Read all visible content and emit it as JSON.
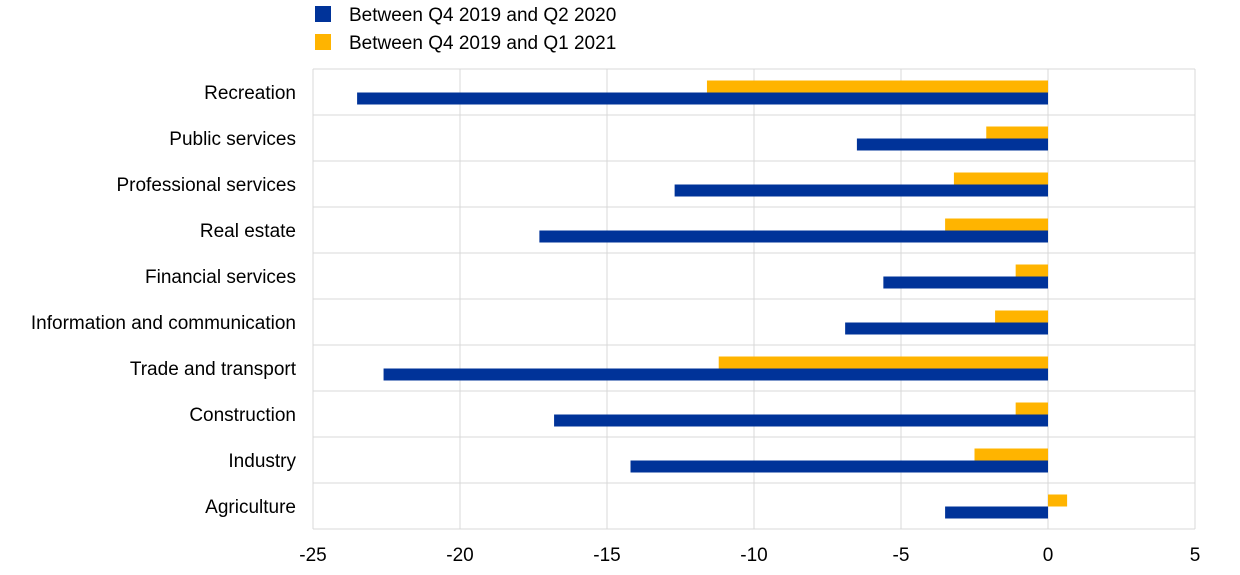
{
  "chart_data": {
    "type": "bar",
    "orientation": "horizontal",
    "categories": [
      "Recreation",
      "Public services",
      "Professional services",
      "Real estate",
      "Financial services",
      "Information and communication",
      "Trade and transport",
      "Construction",
      "Industry",
      "Agriculture"
    ],
    "series": [
      {
        "name": "Between Q4 2019 and Q2 2020",
        "color": "#003399",
        "values": [
          -23.5,
          -6.5,
          -12.7,
          -17.3,
          -5.6,
          -6.9,
          -22.6,
          -16.8,
          -14.2,
          -3.5
        ]
      },
      {
        "name": "Between Q4 2019 and Q1 2021",
        "color": "#FFB400",
        "values": [
          -11.6,
          -2.1,
          -3.2,
          -3.5,
          -1.1,
          -1.8,
          -11.2,
          -1.1,
          -2.5,
          0.65
        ]
      }
    ],
    "xlim": [
      -25,
      5
    ],
    "xticks": [
      "-25",
      "-20",
      "-15",
      "-10",
      "-5",
      "0",
      "5"
    ],
    "xtick_values": [
      -25,
      -20,
      -15,
      -10,
      -5,
      0,
      5
    ],
    "grid": true,
    "legend_position": "top-left"
  }
}
